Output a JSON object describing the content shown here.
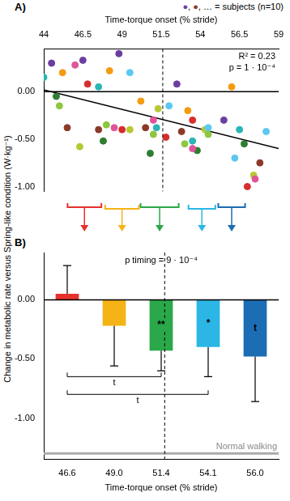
{
  "chart_data": [
    {
      "type": "scatter",
      "panel_label": "A)",
      "x_label": "Time-torque onset (% stride)",
      "y_label": "Change in metabolic rate versus Spring-like condition (W·kg⁻¹)",
      "note": "●, ●, … = subjects (n=10)",
      "marker": "circle",
      "series": [
        {
          "color": "#6b3fa0",
          "x": [
            44.5,
            46.5,
            48.8,
            52.5,
            55.5
          ],
          "values": [
            0.3,
            0.33,
            0.4,
            0.08,
            -0.3
          ]
        },
        {
          "color": "#8b3a2a",
          "x": [
            45.5,
            47.5,
            50.5,
            52.8,
            57.8
          ],
          "values": [
            -0.38,
            -0.4,
            -0.38,
            -0.42,
            -0.75
          ]
        },
        {
          "color": "#e0559a",
          "x": [
            46.0,
            48.5,
            51.0,
            53.5,
            57.5
          ],
          "values": [
            0.28,
            -0.38,
            -0.3,
            -0.6,
            -0.92
          ]
        },
        {
          "color": "#8dc63f",
          "x": [
            45.0,
            48.0,
            51.0,
            53.0,
            54.5
          ],
          "values": [
            -0.15,
            -0.35,
            -0.45,
            -0.55,
            -0.45
          ]
        },
        {
          "color": "#2bb5b5",
          "x": [
            44.0,
            47.5,
            51.2,
            53.5,
            56.5
          ],
          "values": [
            0.15,
            0.05,
            -0.38,
            -0.52,
            -0.4
          ]
        },
        {
          "color": "#5bc8f0",
          "x": [
            49.5,
            52.0,
            54.5,
            56.2,
            58.2
          ],
          "values": [
            0.2,
            -0.15,
            -0.38,
            -0.7,
            -0.42
          ]
        },
        {
          "color": "#d62d2d",
          "x": [
            46.8,
            49.0,
            51.8,
            53.5,
            57.0
          ],
          "values": [
            0.08,
            -0.4,
            -0.48,
            -0.3,
            -1.0
          ]
        },
        {
          "color": "#b5c933",
          "x": [
            46.3,
            49.5,
            51.3,
            54.3,
            57.4
          ],
          "values": [
            -0.58,
            -0.4,
            -0.18,
            -0.4,
            -0.88
          ]
        },
        {
          "color": "#f39c12",
          "x": [
            45.2,
            48.2,
            50.2,
            53.2,
            56.0
          ],
          "values": [
            0.2,
            0.22,
            -0.1,
            -0.2,
            0.05
          ]
        },
        {
          "color": "#2e7d32",
          "x": [
            44.8,
            47.8,
            50.8,
            53.8,
            56.8
          ],
          "values": [
            -0.05,
            -0.52,
            -0.65,
            -0.62,
            -0.55
          ]
        }
      ],
      "fit": {
        "x": [
          44,
          59
        ],
        "values": [
          0.02,
          -0.6
        ],
        "color": "#000000"
      },
      "annotations": [
        "R² = 0.23",
        "p = 1 · 10⁻⁴"
      ],
      "ref_x": 51.6,
      "hline": 0,
      "xlim": [
        44,
        59
      ],
      "xticks": [
        44,
        46.5,
        49,
        51.5,
        54,
        56.5,
        59
      ],
      "ylim": [
        -1.05,
        0.45
      ],
      "yticks": [
        {
          "value": -1,
          "label": "-1.00"
        },
        {
          "value": -0.5,
          "label": "-0.50"
        },
        {
          "value": 0,
          "label": "0.00"
        }
      ],
      "grid": false
    },
    {
      "type": "bar",
      "panel_label": "B)",
      "x_label": "Time-torque onset (% stride)",
      "categories": [
        "46.6",
        "49.0",
        "51.4",
        "54.1",
        "56.0"
      ],
      "values": [
        0.05,
        -0.22,
        -0.43,
        -0.4,
        -0.48
      ],
      "errors": [
        0.24,
        0.34,
        0.17,
        0.25,
        0.38
      ],
      "colors": [
        "#e5322d",
        "#f5b316",
        "#2aa84a",
        "#2cb6e6",
        "#1c6db3"
      ],
      "significance": [
        null,
        null,
        "**",
        "*",
        "t"
      ],
      "brackets": [
        {
          "from": "46.6",
          "to": "51.4",
          "y": -0.65,
          "label": "t"
        },
        {
          "from": "46.6",
          "to": "54.1",
          "y": -0.8,
          "label": "t"
        }
      ],
      "annotation": "p timing = 9 · 10⁻⁴",
      "reference": {
        "value": -1.3,
        "label": "Normal walking",
        "color": "#aaaaaa"
      },
      "ref_x": 51.6,
      "hline": 0,
      "ylim": [
        -1.35,
        0.4
      ],
      "yticks": [
        {
          "value": -1,
          "label": "-1.00"
        },
        {
          "value": -0.5,
          "label": "-0.50"
        },
        {
          "value": 0,
          "label": "0.00"
        }
      ],
      "grid": false
    }
  ]
}
